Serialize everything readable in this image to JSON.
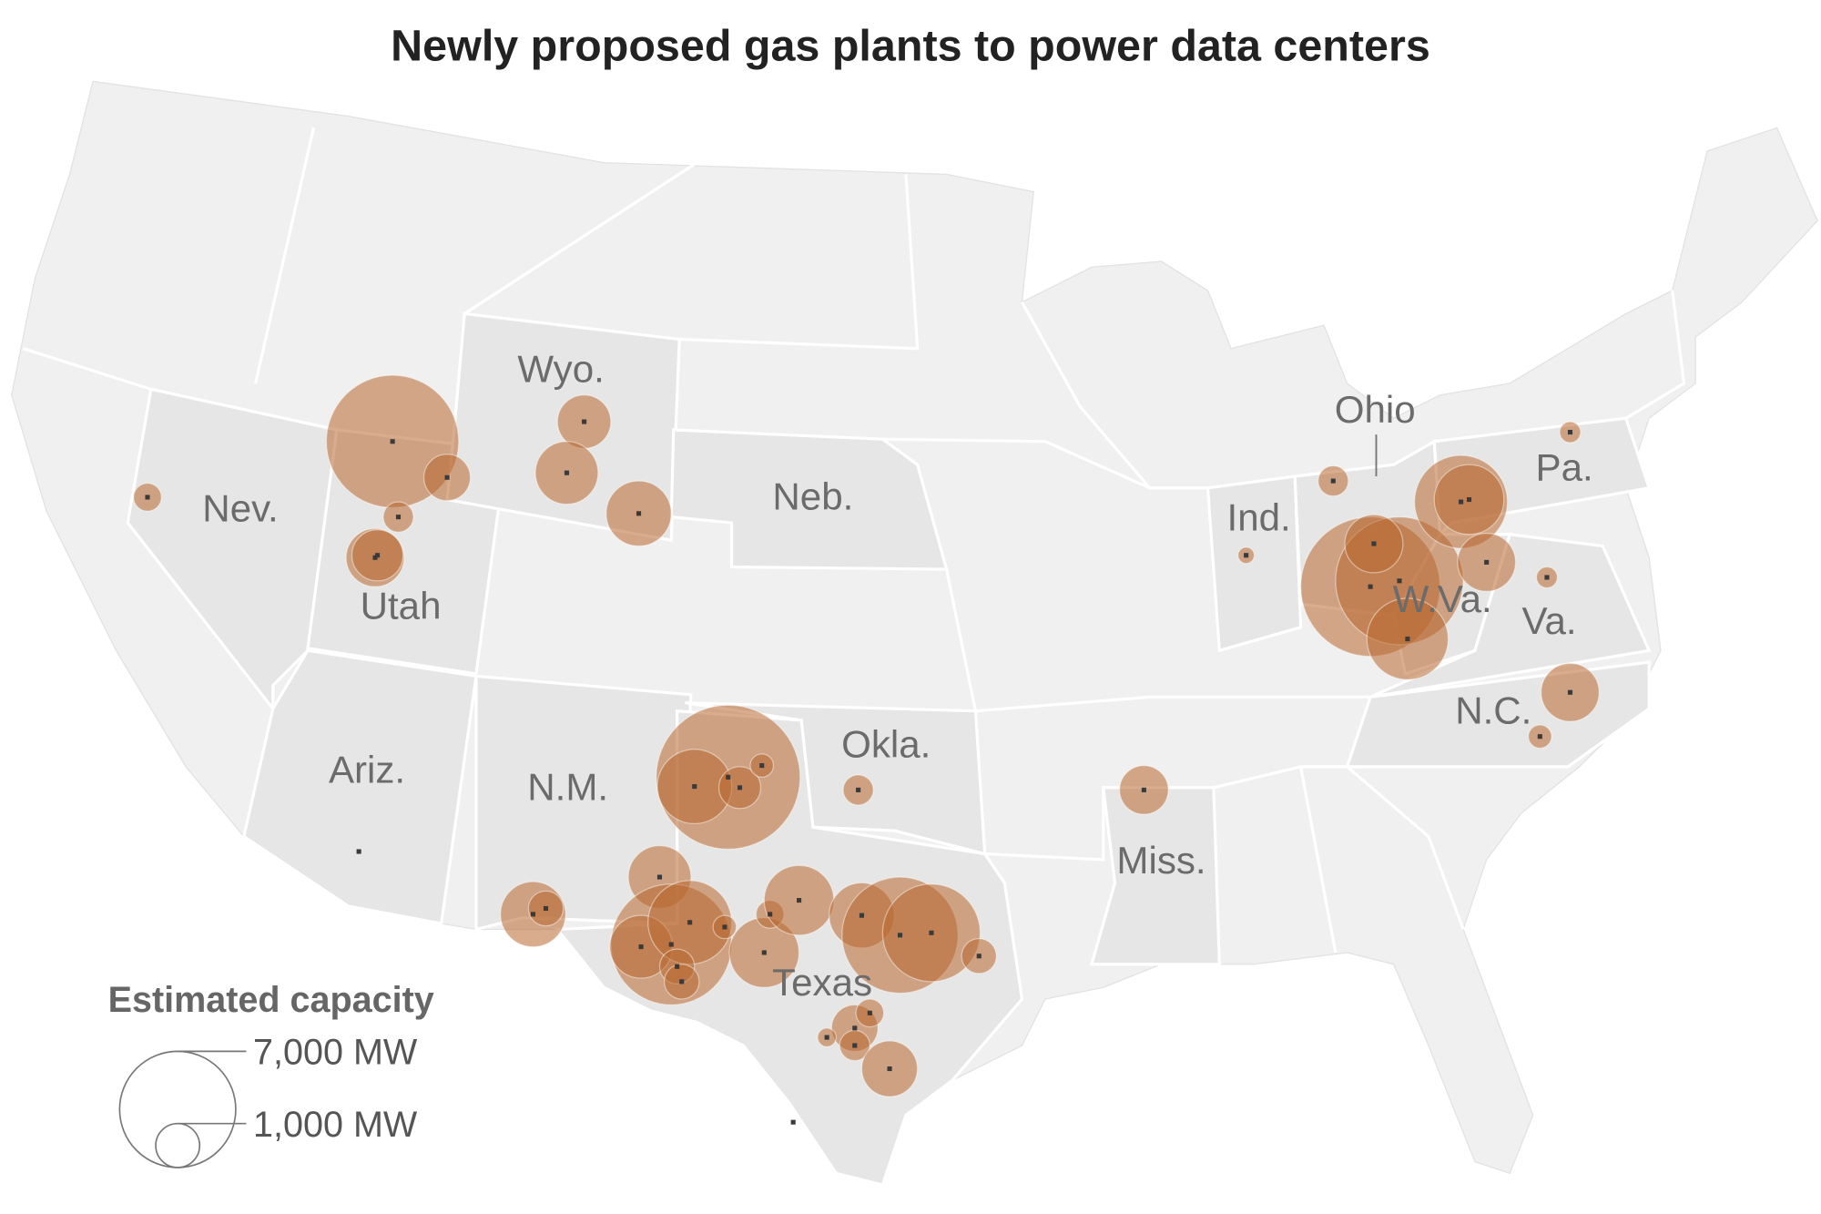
{
  "map": {
    "title": "Newly proposed gas plants to power data centers",
    "color": "#b8672f",
    "state_labels": [
      "Nev.",
      "Utah",
      "Wyo.",
      "Neb.",
      "Ariz.",
      "N.M.",
      "Okla.",
      "Texas",
      "Miss.",
      "Ind.",
      "Ohio",
      "Pa.",
      "W.Va.",
      "Va.",
      "N.C."
    ],
    "legend": {
      "title": "Estimated capacity",
      "ticks": [
        {
          "value": 7000,
          "label": "7,000 MW"
        },
        {
          "value": 1000,
          "label": "1,000 MW"
        }
      ]
    },
    "plants": [
      403,
      9100,
      1120,
      473,
      1750,
      1355,
      1480,
      2040,
      2200,
      137,
      473,
      10080,
      8470,
      1750,
      3430,
      4480,
      2520,
      1750,
      227,
      227,
      1750,
      280,
      1235,
      473,
      10760,
      2870,
      907,
      280,
      2040,
      2200,
      630,
      7570,
      2040,
      3630,
      630,
      630,
      280,
      2520,
      403,
      2520,
      2200,
      7000,
      4940,
      630,
      1120,
      403,
      180,
      473,
      1610
    ]
  }
}
